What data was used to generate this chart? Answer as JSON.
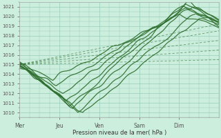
{
  "title": "",
  "xlabel": "Pression niveau de la mer( hPa )",
  "ylabel": "",
  "background_color": "#cceedd",
  "grid_color": "#99ccbb",
  "line_color": "#2d6e2d",
  "ylim": [
    1009.5,
    1021.5
  ],
  "yticks": [
    1010,
    1011,
    1012,
    1013,
    1014,
    1015,
    1016,
    1017,
    1018,
    1019,
    1020,
    1021
  ],
  "day_labels": [
    "Mer",
    "Jeu",
    "Ven",
    "Sam",
    "Dim"
  ],
  "day_positions": [
    0,
    24,
    48,
    72,
    96
  ],
  "xlim": [
    0,
    120
  ],
  "dashed_lines": [
    {
      "x0": 0,
      "y0": 1015.0,
      "x1": 120,
      "y1": 1019.2
    },
    {
      "x0": 0,
      "y0": 1015.0,
      "x1": 120,
      "y1": 1018.5
    },
    {
      "x0": 0,
      "y0": 1015.0,
      "x1": 120,
      "y1": 1017.5
    },
    {
      "x0": 0,
      "y0": 1015.0,
      "x1": 120,
      "y1": 1016.5
    },
    {
      "x0": 0,
      "y0": 1015.0,
      "x1": 120,
      "y1": 1015.5
    }
  ]
}
